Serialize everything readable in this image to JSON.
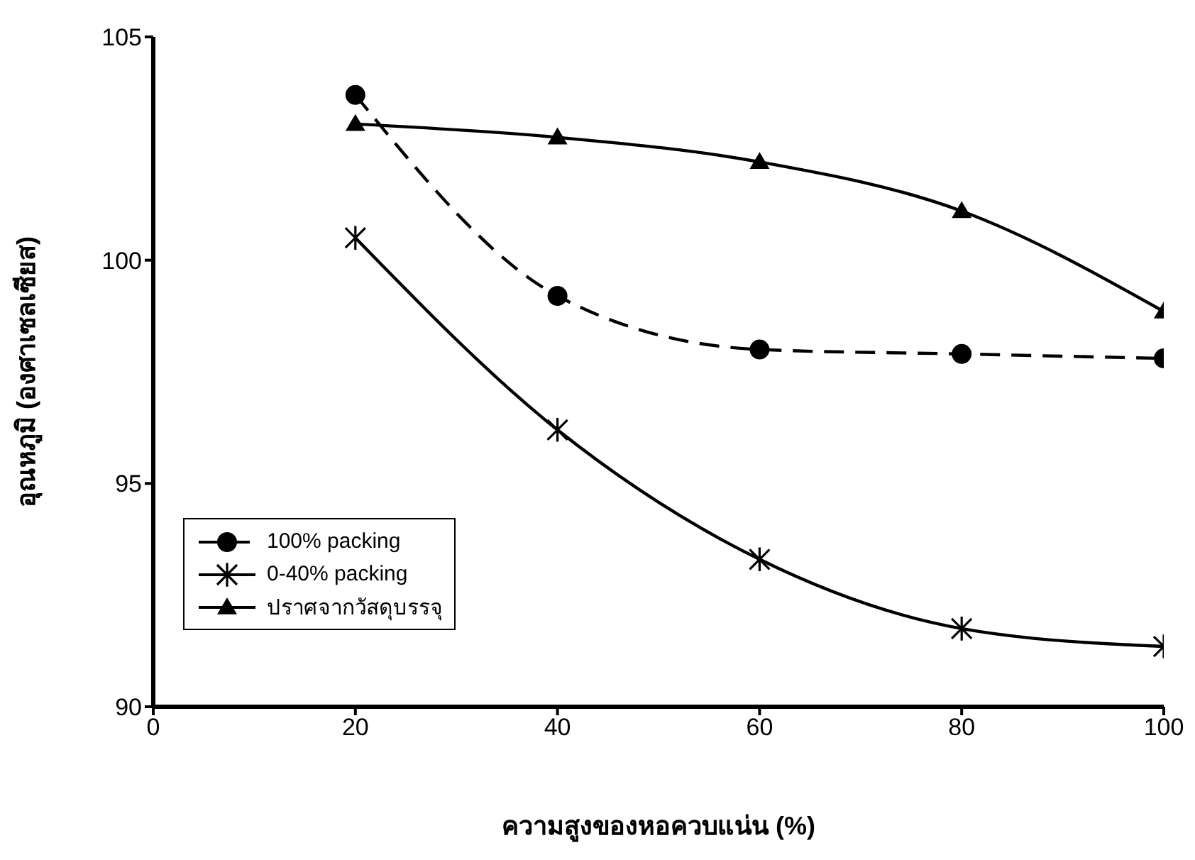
{
  "chart_data": {
    "type": "line",
    "xlabel": "ความสูงของหอควบแน่น (%)",
    "ylabel": "อุณหภูมิ (องศาเซลเซียส)",
    "x": [
      20,
      40,
      60,
      80,
      100
    ],
    "series": [
      {
        "name": "100% packing",
        "color": "#000000",
        "values": [
          103.7,
          99.2,
          98.0,
          97.9,
          97.8
        ],
        "marker": "circle",
        "line_style": "dashed"
      },
      {
        "name": "0-40% packing",
        "color": "#000000",
        "values": [
          100.5,
          96.2,
          93.3,
          91.75,
          91.35
        ],
        "marker": "cross",
        "line_style": "solid"
      },
      {
        "name": "ปราศจากวัสดุบรรจุ",
        "color": "#000000",
        "values": [
          103.05,
          102.75,
          102.2,
          101.1,
          98.85
        ],
        "marker": "triangle",
        "line_style": "solid"
      }
    ],
    "xlim": [
      0,
      100
    ],
    "xticks": [
      0,
      20,
      40,
      60,
      80,
      100
    ],
    "ylim": [
      90,
      105
    ],
    "yticks": [
      90,
      95,
      100,
      105
    ],
    "grid": false,
    "legend": "bottom left"
  }
}
